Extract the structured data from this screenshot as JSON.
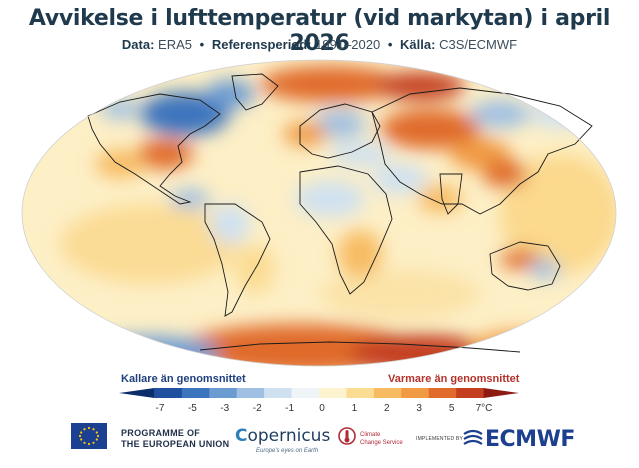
{
  "title": "Avvikelse i lufttemperatur (vid markytan) i april 2026",
  "subtitle": {
    "data_label": "Data:",
    "data_value": "ERA5",
    "ref_label": "Referensperiod:",
    "ref_value": "1991–2020",
    "source_label": "Källa:",
    "source_value": "C3S/ECMWF"
  },
  "legend": {
    "colder_label": "Kallare än genomsnittet",
    "warmer_label": "Varmare än genomsnittet",
    "ticks": [
      "-7",
      "-5",
      "-3",
      "-2",
      "-1",
      "0",
      "1",
      "2",
      "3",
      "5",
      "7°C"
    ],
    "colors": [
      "#0b2e6b",
      "#1f4f9e",
      "#3c74bd",
      "#6c9bd2",
      "#9fc0e3",
      "#cfe1f1",
      "#eef4f8",
      "#fdf3cf",
      "#fbdc93",
      "#f7bb62",
      "#f09a43",
      "#e06b2c",
      "#c43f20",
      "#8e1a14"
    ]
  },
  "footer": {
    "eu_line1": "PROGRAMME OF",
    "eu_line2": "THE EUROPEAN UNION",
    "copernicus_name": "opernicus",
    "copernicus_tagline": "Europe's eyes on Earth",
    "c3s_line1": "Climate",
    "c3s_line2": "Change Service",
    "implemented_by": "IMPLEMENTED BY",
    "ecmwf": "ECMWF"
  }
}
